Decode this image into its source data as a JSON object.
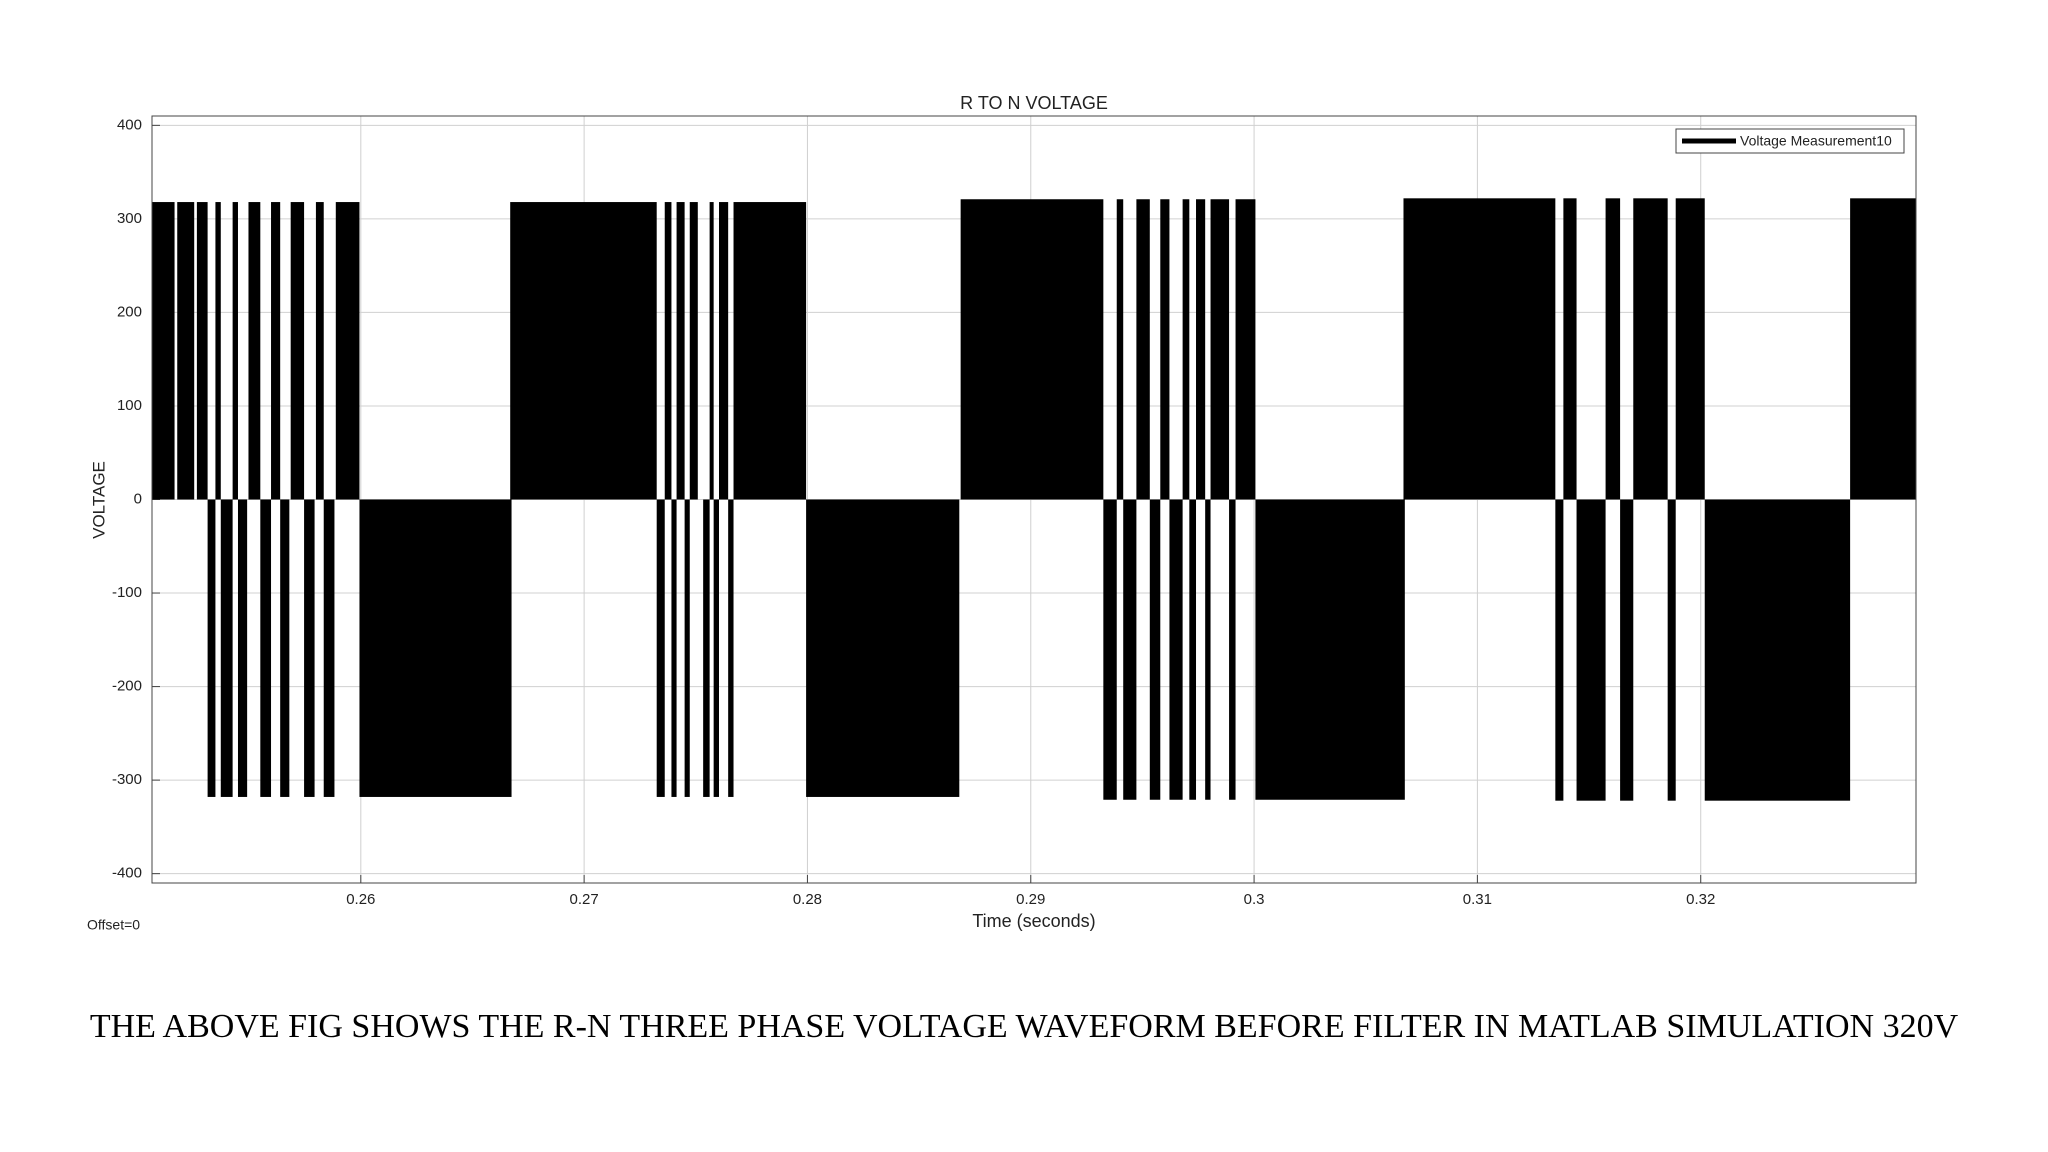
{
  "chart_data": {
    "type": "pulse",
    "title": "R TO N  VOLTAGE",
    "x_label": "Time (seconds)",
    "y_label": "VOLTAGE",
    "offset_note": "Offset=0",
    "caption": "THE ABOVE FIG SHOWS THE  R-N THREE PHASE VOLTAGE  WAVEFORM BEFORE FILTER IN MATLAB SIMULATION  320V",
    "xlim": [
      0.25065,
      0.32964
    ],
    "xticks": [
      0.26,
      0.27,
      0.28,
      0.29,
      0.3,
      0.31,
      0.32
    ],
    "ylim": [
      -410,
      410
    ],
    "yticks": [
      -400,
      -300,
      -200,
      -100,
      0,
      100,
      200,
      300,
      400
    ],
    "grid": true,
    "legend": "upper-right",
    "series": [
      {
        "name": "Voltage Measurement10",
        "color": "#000000",
        "x_start": [
          0.25065,
          0.25178,
          0.25266,
          0.25349,
          0.25426,
          0.25497,
          0.25598,
          0.25686,
          0.25799,
          0.25888,
          0.25314,
          0.25373,
          0.2545,
          0.2555,
          0.25639,
          0.25746,
          0.25834,
          0.25994,
          0.26669,
          0.27361,
          0.27414,
          0.27473,
          0.27562,
          0.27604,
          0.27669,
          0.27325,
          0.27391,
          0.2745,
          0.27533,
          0.2758,
          0.27645,
          0.27994,
          0.28686,
          0.29385,
          0.29473,
          0.2958,
          0.2968,
          0.2974,
          0.29805,
          0.29917,
          0.29325,
          0.29414,
          0.29533,
          0.29621,
          0.2971,
          0.29781,
          0.29888,
          0.30006,
          0.30669,
          0.31385,
          0.31574,
          0.31698,
          0.31888,
          0.32669,
          0.31349,
          0.31444,
          0.31639,
          0.31852,
          0.32018
        ],
        "x_end": [
          0.25166,
          0.25254,
          0.25314,
          0.25373,
          0.2545,
          0.2555,
          0.25639,
          0.25746,
          0.25834,
          0.25994,
          0.25349,
          0.25426,
          0.25491,
          0.25598,
          0.2568,
          0.25793,
          0.25882,
          0.26675,
          0.27325,
          0.27391,
          0.2745,
          0.27509,
          0.2758,
          0.27645,
          0.27994,
          0.27361,
          0.27414,
          0.27473,
          0.27562,
          0.27604,
          0.27669,
          0.2868,
          0.29325,
          0.29414,
          0.29533,
          0.29621,
          0.2971,
          0.29781,
          0.29888,
          0.30006,
          0.29385,
          0.29473,
          0.2958,
          0.2968,
          0.2974,
          0.29805,
          0.29917,
          0.30675,
          0.31349,
          0.31444,
          0.31639,
          0.31852,
          0.32018,
          0.32964,
          0.31385,
          0.31574,
          0.31698,
          0.31888,
          0.32669
        ],
        "values": [
          318,
          318,
          318,
          318,
          318,
          318,
          318,
          318,
          318,
          318,
          -318,
          -318,
          -318,
          -318,
          -318,
          -318,
          -318,
          -318,
          318,
          318,
          318,
          318,
          318,
          318,
          318,
          -318,
          -318,
          -318,
          -318,
          -318,
          -318,
          -318,
          321,
          321,
          321,
          321,
          321,
          321,
          321,
          321,
          -321,
          -321,
          -321,
          -321,
          -321,
          -321,
          -321,
          -321,
          322,
          322,
          322,
          322,
          322,
          322,
          -322,
          -322,
          -322,
          -322,
          -322
        ]
      }
    ]
  }
}
